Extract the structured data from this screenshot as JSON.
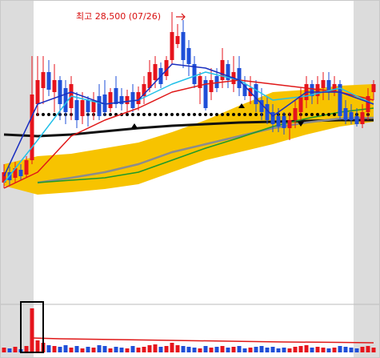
{
  "chart_data": {
    "type": "candlestick",
    "annotation": "최고 28,500 (07/26)",
    "ylim": [
      5500,
      30000
    ],
    "up_color": "#e6141c",
    "down_color": "#1e4fd8",
    "open": [
      7200,
      8500,
      7800,
      8800,
      8200,
      10000,
      17000,
      19000,
      21000,
      18500,
      20000,
      19000,
      16500,
      17500,
      15500,
      17500,
      16000,
      18000,
      18200,
      16500,
      19000,
      18000,
      17000,
      18500,
      17000,
      18000,
      19000,
      20000,
      21500,
      20500,
      22500,
      24500,
      26000,
      24000,
      22000,
      19000,
      20000,
      18500,
      20500,
      20000,
      22000,
      19500,
      21500,
      19500,
      18000,
      19500,
      17500,
      17000,
      16000,
      15500,
      15500,
      14000,
      15000,
      16000,
      17500,
      19500,
      18000,
      19000,
      20000,
      18500,
      19500,
      16500,
      16000,
      15500,
      14500,
      16000,
      18500
    ],
    "high": [
      9500,
      9200,
      9800,
      9500,
      10500,
      23000,
      23000,
      23000,
      22500,
      22000,
      20500,
      20000,
      20500,
      18500,
      18500,
      18000,
      18500,
      19500,
      20000,
      19000,
      20500,
      19000,
      18800,
      19500,
      19200,
      20500,
      22500,
      23000,
      22200,
      23000,
      28500,
      27000,
      27500,
      25000,
      23000,
      21000,
      20500,
      21500,
      21500,
      24000,
      22500,
      23000,
      23000,
      20500,
      20500,
      20000,
      19000,
      18000,
      17000,
      16500,
      16000,
      16000,
      17500,
      19000,
      20500,
      20000,
      20500,
      21000,
      21000,
      20500,
      20000,
      17500,
      17000,
      16500,
      17000,
      19000,
      20000
    ],
    "low": [
      6500,
      6800,
      7200,
      7500,
      7800,
      9500,
      15500,
      17000,
      18000,
      16000,
      15000,
      14500,
      15000,
      14000,
      14500,
      14200,
      15000,
      15000,
      15500,
      16000,
      16500,
      16200,
      16000,
      16000,
      16200,
      17000,
      18500,
      19000,
      19000,
      20000,
      22000,
      24000,
      21500,
      20500,
      19000,
      17000,
      16200,
      17500,
      18500,
      19000,
      19000,
      18500,
      18000,
      17500,
      17000,
      16000,
      15000,
      14500,
      13500,
      13500,
      13200,
      12500,
      14000,
      15000,
      16500,
      17000,
      17000,
      17500,
      17500,
      18000,
      15000,
      14500,
      14500,
      14200,
      14000,
      15000,
      17500
    ],
    "close": [
      8500,
      7500,
      9000,
      8000,
      10000,
      18200,
      20000,
      21000,
      18800,
      20000,
      17000,
      16000,
      19500,
      15000,
      17500,
      16000,
      17500,
      15500,
      16000,
      18500,
      17000,
      17000,
      18000,
      16500,
      18500,
      19500,
      21000,
      22000,
      19500,
      22500,
      26000,
      25500,
      22500,
      22000,
      19500,
      20500,
      16500,
      20000,
      19000,
      22500,
      20000,
      21000,
      19000,
      18000,
      19000,
      17000,
      16000,
      15000,
      14500,
      14200,
      14000,
      15000,
      16500,
      18000,
      19500,
      18000,
      19500,
      20000,
      18500,
      19500,
      15500,
      15000,
      15000,
      14500,
      16000,
      18000,
      19500
    ],
    "overlays": [
      {
        "kind": "band",
        "color": "#f7c300",
        "x": [
          0,
          6,
          12,
          18,
          24,
          30,
          36,
          42,
          48,
          54,
          60,
          66
        ],
        "upper": [
          9500,
          10500,
          10800,
          11500,
          12200,
          13500,
          15000,
          16800,
          18500,
          18800,
          19300,
          19500
        ],
        "lower": [
          6800,
          5700,
          6000,
          6400,
          7000,
          8500,
          10000,
          11000,
          12000,
          13200,
          14200,
          14800
        ]
      },
      {
        "kind": "line",
        "color": "#111111",
        "width": 3,
        "x": [
          0,
          6,
          12,
          18,
          24,
          30,
          36,
          42,
          48,
          54,
          60,
          66
        ],
        "values": [
          13200,
          13000,
          13200,
          13600,
          14000,
          14300,
          14500,
          14700,
          14800,
          14900,
          15000,
          15000
        ]
      },
      {
        "kind": "line",
        "color": "#8c8c8c",
        "width": 2.5,
        "x": [
          6,
          12,
          18,
          24,
          30,
          36,
          42,
          48,
          54,
          60,
          66
        ],
        "values": [
          7200,
          7800,
          8500,
          9500,
          11000,
          12000,
          13000,
          14000,
          14700,
          15200,
          15300
        ]
      },
      {
        "kind": "line",
        "color": "#1f9a2a",
        "width": 1.5,
        "x": [
          6,
          12,
          18,
          24,
          30,
          36,
          42,
          48,
          54,
          60,
          66
        ],
        "values": [
          7200,
          7500,
          7800,
          8500,
          10000,
          11500,
          12800,
          14200,
          15200,
          16000,
          16500
        ]
      },
      {
        "kind": "dots",
        "color": "#000000",
        "x": [
          5,
          66
        ],
        "values": [
          15700,
          15700
        ]
      },
      {
        "kind": "candles"
      },
      {
        "kind": "line",
        "color": "#e01818",
        "width": 1.5,
        "x": [
          0,
          6,
          12,
          18,
          24,
          30,
          36,
          42,
          48,
          54,
          60,
          66
        ],
        "values": [
          6500,
          8500,
          13000,
          15000,
          16500,
          18500,
          19500,
          20000,
          19500,
          19000,
          18500,
          17500
        ]
      },
      {
        "kind": "line",
        "color": "#22c0e8",
        "width": 1.5,
        "x": [
          0,
          6,
          12,
          18,
          24,
          30,
          36,
          42,
          48,
          54,
          60,
          66
        ],
        "values": [
          7200,
          12500,
          18000,
          17000,
          17500,
          19500,
          21000,
          20000,
          17500,
          18000,
          19000,
          17000
        ]
      },
      {
        "kind": "line",
        "color": "#1a2fc0",
        "width": 1.5,
        "x": [
          0,
          6,
          12,
          18,
          24,
          30,
          36,
          42,
          48,
          54,
          60,
          66
        ],
        "values": [
          8000,
          17000,
          18500,
          17000,
          17500,
          22000,
          21500,
          20000,
          15500,
          18500,
          18500,
          17000
        ]
      }
    ],
    "volume": {
      "ylim": [
        0,
        60000
      ],
      "values": [
        6000,
        5000,
        7000,
        4000,
        8000,
        55000,
        15000,
        12000,
        9000,
        8000,
        7000,
        9000,
        6000,
        8000,
        5000,
        7000,
        6000,
        9000,
        8000,
        5000,
        7000,
        6000,
        5000,
        8000,
        6000,
        7000,
        9000,
        10000,
        7000,
        8000,
        12000,
        9000,
        8000,
        7000,
        6000,
        5000,
        8000,
        6000,
        7000,
        8000,
        6000,
        7000,
        8000,
        5000,
        6000,
        7000,
        8000,
        6000,
        7000,
        5000,
        6000,
        5000,
        7000,
        8000,
        9000,
        6000,
        7000,
        6000,
        5000,
        6000,
        8000,
        7000,
        6000,
        5000,
        7000,
        8000,
        6000
      ],
      "ma": {
        "color": "#e01818",
        "x": [
          5,
          10,
          20,
          30,
          40,
          50,
          60,
          66
        ],
        "values": [
          18000,
          17000,
          16000,
          15000,
          14000,
          13000,
          12500,
          12000
        ]
      }
    }
  }
}
